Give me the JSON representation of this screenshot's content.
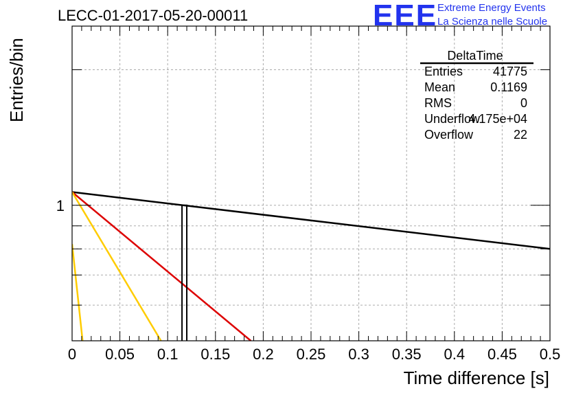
{
  "title": "LECC-01-2017-05-20-00011",
  "logo": {
    "mark": "EEE",
    "line1": "Extreme Energy Events",
    "line2": "La Scienza nelle Scuole"
  },
  "stats": {
    "name": "DeltaTime",
    "rows": [
      {
        "label": "Entries",
        "value": "41775"
      },
      {
        "label": "Mean",
        "value": "0.1169"
      },
      {
        "label": "RMS",
        "value": "0"
      },
      {
        "label": "Underflow",
        "value": "4.175e+04"
      },
      {
        "label": "Overflow",
        "value": "22"
      }
    ]
  },
  "chart_data": {
    "type": "line",
    "xlabel": "Time difference [s]",
    "ylabel": "Entries/bin",
    "xlim": [
      0,
      0.5
    ],
    "ylim": [
      0.5,
      2.5
    ],
    "y_scale": "log",
    "grid": true,
    "x_ticks": [
      "0",
      "0.05",
      "0.1",
      "0.15",
      "0.2",
      "0.25",
      "0.3",
      "0.35",
      "0.4",
      "0.45",
      "0.5"
    ],
    "y_ticks": [
      "1"
    ],
    "histogram_bin": {
      "x0": 0.115,
      "x1": 0.12,
      "value": 1
    },
    "series": [
      {
        "color": "#000000",
        "points": [
          [
            0,
            1.07
          ],
          [
            0.5,
            0.8
          ]
        ]
      },
      {
        "color": "#dd0000",
        "points": [
          [
            0,
            1.07
          ],
          [
            0.187,
            0.5
          ]
        ]
      },
      {
        "color": "#ffcc00",
        "points": [
          [
            0,
            1.07
          ],
          [
            0.093,
            0.5
          ]
        ]
      },
      {
        "color": "#ffcc00",
        "points": [
          [
            0,
            0.82
          ],
          [
            0.011,
            0.5
          ]
        ]
      }
    ]
  }
}
